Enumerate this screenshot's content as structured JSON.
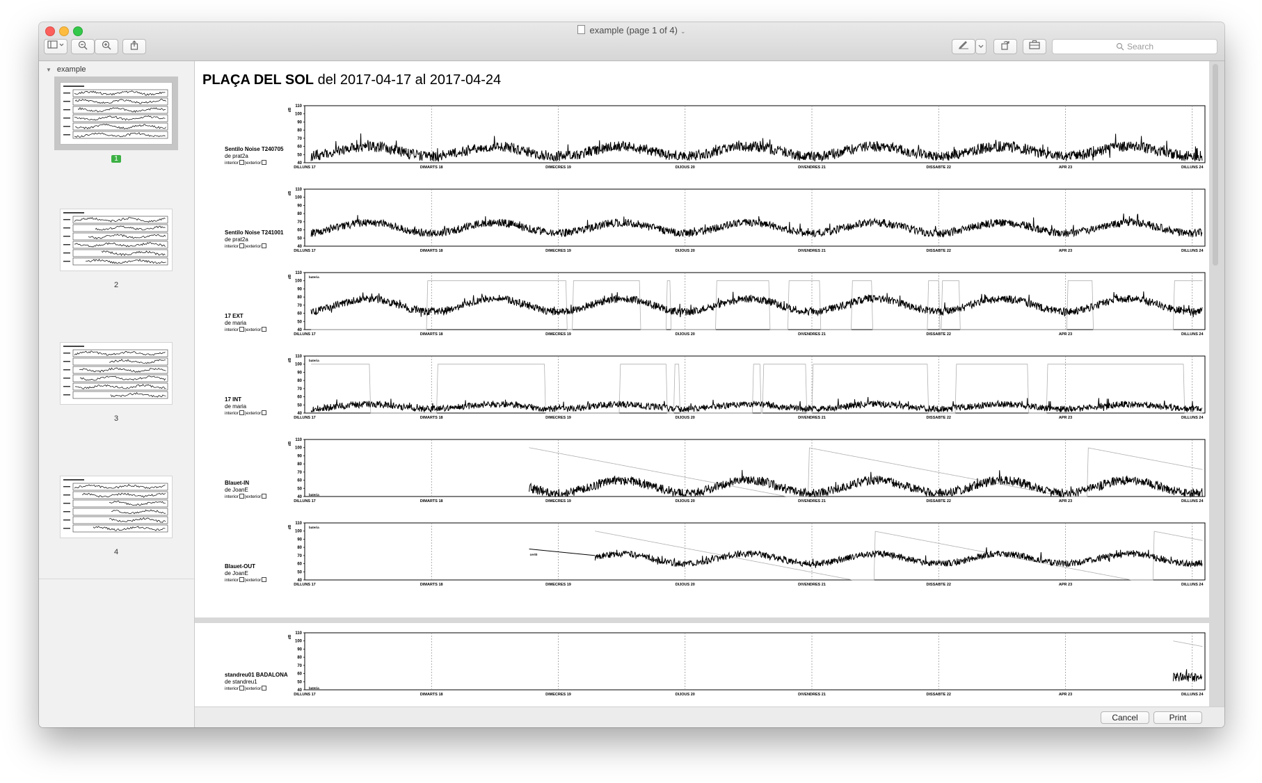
{
  "window": {
    "title": "example (page 1 of 4)"
  },
  "toolbar": {
    "search_placeholder": "Search",
    "icons": [
      "sidebar-icon",
      "zoom-out-icon",
      "zoom-in-icon",
      "share-icon",
      "markup-icon",
      "rotate-icon",
      "toolbox-icon",
      "search-icon"
    ]
  },
  "sidebar": {
    "document_name": "example",
    "pages": [
      {
        "label": "1",
        "selected": true
      },
      {
        "label": "2",
        "selected": false
      },
      {
        "label": "3",
        "selected": false
      },
      {
        "label": "4",
        "selected": false
      }
    ]
  },
  "report": {
    "place": "PLAÇA DEL SOL",
    "range": "del 2017-04-17 al 2017-04-24",
    "legend_interior": "interior",
    "legend_exterior": "exterior",
    "sensors": [
      {
        "name": "Sentilo Noise T240705",
        "owner": "de prat2a"
      },
      {
        "name": "Sentilo Noise T241001",
        "owner": "de prat2a"
      },
      {
        "name": "17 EXT",
        "owner": "de maria"
      },
      {
        "name": "17 INT",
        "owner": "de maria"
      },
      {
        "name": "Blauet-IN",
        "owner": "de JoanE"
      },
      {
        "name": "Blauet-OUT",
        "owner": "de JoanE"
      },
      {
        "name": "standreu01 BADALONA",
        "owner": "de standreu1"
      }
    ]
  },
  "chart_data": {
    "type": "line",
    "ylabel": "dB",
    "ylim": [
      40,
      110
    ],
    "yticks": [
      40,
      50,
      60,
      70,
      80,
      90,
      100,
      110
    ],
    "x_range_days": [
      0,
      7.1
    ],
    "day_labels": [
      "DILLUNS 17",
      "DIMARTS 18",
      "DIMECRES 19",
      "DIJOUS 20",
      "DIVENDRES 21",
      "DISSABTE 22",
      "APR 23",
      "DILLUNS 24"
    ],
    "battery_label": "bateria",
    "panels": [
      {
        "sensor": "Sentilo Noise T240705",
        "coverage": [
          0.05,
          7.08
        ],
        "day_base": 60,
        "night_base": 48,
        "noise": 8
      },
      {
        "sensor": "Sentilo Noise T241001",
        "coverage": [
          0.05,
          7.08
        ],
        "day_base": 69,
        "night_base": 56,
        "noise": 6
      },
      {
        "sensor": "17 EXT",
        "coverage": [
          0.05,
          7.08
        ],
        "day_base": 78,
        "night_base": 62,
        "noise": 6,
        "battery_line": true
      },
      {
        "sensor": "17 INT",
        "coverage": [
          0.05,
          7.08
        ],
        "day_base": 51,
        "night_base": 45,
        "noise": 5,
        "battery_line": true
      },
      {
        "sensor": "Blauet-IN",
        "coverage": [
          1.77,
          7.08
        ],
        "day_base": 60,
        "night_base": 44,
        "noise": 7,
        "battery_line": true
      },
      {
        "sensor": "Blauet-OUT",
        "coverage": [
          2.29,
          7.08
        ],
        "day_base": 72,
        "night_base": 60,
        "noise": 5,
        "battery_line": true,
        "annotation": "cert0"
      },
      {
        "sensor": "standreu01 BADALONA",
        "coverage": [
          6.85,
          7.08
        ],
        "day_base": 58,
        "night_base": 55,
        "noise": 7,
        "battery_line": true
      }
    ]
  },
  "footer": {
    "cancel_label": "Cancel",
    "print_label": "Print"
  }
}
